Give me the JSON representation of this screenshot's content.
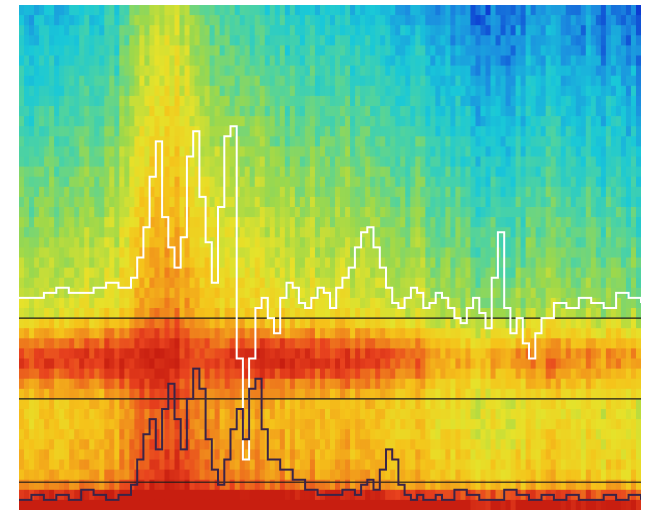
{
  "chart_data": {
    "type": "heatmap",
    "title": "",
    "xlabel": "",
    "ylabel": "",
    "grid": false,
    "legend": "none",
    "colormap": [
      "#0a2fd0",
      "#1b8fe0",
      "#19c8d8",
      "#4fd3a0",
      "#9ed84a",
      "#e6e22a",
      "#f5c31a",
      "#f08a1c",
      "#e8421e",
      "#c81e10"
    ],
    "colorscale_range": [
      0,
      1
    ],
    "grid_size": {
      "columns": 124,
      "rows": 50
    },
    "intensity_profile": {
      "x": [
        0,
        0.04,
        0.08,
        0.12,
        0.16,
        0.19,
        0.22,
        0.25,
        0.28,
        0.31,
        0.34,
        0.37,
        0.4,
        0.44,
        0.48,
        0.52,
        0.56,
        0.6,
        0.64,
        0.68,
        0.72,
        0.76,
        0.8,
        0.84,
        0.88,
        0.92,
        0.96,
        1.0
      ],
      "hot_band_strength": [
        0.85,
        0.88,
        0.86,
        0.84,
        0.82,
        0.55,
        0.5,
        0.45,
        0.35,
        0.5,
        0.7,
        0.8,
        0.86,
        0.88,
        0.86,
        0.84,
        0.82,
        0.8,
        0.7,
        0.55,
        0.5,
        0.6,
        0.72,
        0.75,
        0.74,
        0.72,
        0.7,
        0.68
      ],
      "column_warmth": [
        0.35,
        0.35,
        0.38,
        0.4,
        0.45,
        0.6,
        0.7,
        0.72,
        0.62,
        0.55,
        0.5,
        0.48,
        0.45,
        0.43,
        0.42,
        0.4,
        0.38,
        0.36,
        0.35,
        0.3,
        0.25,
        0.22,
        0.25,
        0.28,
        0.27,
        0.25,
        0.24,
        0.22
      ]
    },
    "reference_lines_y": [
      0.62,
      0.78,
      0.945
    ],
    "series": [
      {
        "color": "#ffffff",
        "x": [
          0,
          0.02,
          0.04,
          0.06,
          0.08,
          0.1,
          0.12,
          0.14,
          0.16,
          0.18,
          0.19,
          0.2,
          0.21,
          0.22,
          0.23,
          0.24,
          0.25,
          0.26,
          0.27,
          0.28,
          0.29,
          0.3,
          0.31,
          0.32,
          0.33,
          0.34,
          0.35,
          0.36,
          0.37,
          0.38,
          0.39,
          0.4,
          0.41,
          0.42,
          0.43,
          0.44,
          0.45,
          0.46,
          0.47,
          0.48,
          0.49,
          0.5,
          0.51,
          0.52,
          0.53,
          0.54,
          0.55,
          0.56,
          0.57,
          0.58,
          0.59,
          0.6,
          0.61,
          0.62,
          0.63,
          0.64,
          0.65,
          0.66,
          0.67,
          0.68,
          0.69,
          0.7,
          0.71,
          0.72,
          0.73,
          0.74,
          0.75,
          0.76,
          0.77,
          0.78,
          0.79,
          0.8,
          0.81,
          0.82,
          0.83,
          0.84,
          0.86,
          0.88,
          0.9,
          0.92,
          0.94,
          0.96,
          0.98,
          1.0
        ],
        "y": [
          0.42,
          0.42,
          0.43,
          0.44,
          0.43,
          0.43,
          0.44,
          0.45,
          0.44,
          0.46,
          0.5,
          0.56,
          0.66,
          0.73,
          0.58,
          0.52,
          0.48,
          0.54,
          0.7,
          0.75,
          0.62,
          0.53,
          0.45,
          0.6,
          0.74,
          0.76,
          0.3,
          0.1,
          0.3,
          0.4,
          0.42,
          0.38,
          0.35,
          0.42,
          0.45,
          0.44,
          0.41,
          0.4,
          0.42,
          0.44,
          0.43,
          0.4,
          0.44,
          0.46,
          0.48,
          0.52,
          0.55,
          0.56,
          0.52,
          0.48,
          0.44,
          0.41,
          0.4,
          0.42,
          0.44,
          0.43,
          0.4,
          0.41,
          0.43,
          0.42,
          0.4,
          0.38,
          0.37,
          0.4,
          0.42,
          0.39,
          0.36,
          0.46,
          0.55,
          0.4,
          0.35,
          0.38,
          0.33,
          0.3,
          0.35,
          0.38,
          0.41,
          0.4,
          0.42,
          0.41,
          0.4,
          0.43,
          0.42,
          0.41
        ]
      },
      {
        "color": "#3a2448",
        "x": [
          0,
          0.02,
          0.04,
          0.06,
          0.08,
          0.1,
          0.12,
          0.14,
          0.16,
          0.18,
          0.19,
          0.2,
          0.21,
          0.22,
          0.23,
          0.24,
          0.25,
          0.26,
          0.27,
          0.28,
          0.29,
          0.3,
          0.31,
          0.32,
          0.33,
          0.34,
          0.35,
          0.36,
          0.37,
          0.38,
          0.39,
          0.4,
          0.42,
          0.44,
          0.46,
          0.48,
          0.5,
          0.52,
          0.54,
          0.55,
          0.56,
          0.57,
          0.58,
          0.59,
          0.6,
          0.61,
          0.62,
          0.63,
          0.64,
          0.65,
          0.66,
          0.67,
          0.68,
          0.7,
          0.72,
          0.74,
          0.76,
          0.78,
          0.8,
          0.82,
          0.84,
          0.86,
          0.88,
          0.9,
          0.92,
          0.94,
          0.96,
          0.98,
          1.0
        ],
        "y": [
          0.02,
          0.03,
          0.02,
          0.03,
          0.02,
          0.04,
          0.03,
          0.02,
          0.03,
          0.05,
          0.1,
          0.15,
          0.18,
          0.12,
          0.2,
          0.25,
          0.18,
          0.12,
          0.22,
          0.28,
          0.24,
          0.14,
          0.08,
          0.05,
          0.1,
          0.16,
          0.2,
          0.14,
          0.24,
          0.26,
          0.16,
          0.1,
          0.08,
          0.06,
          0.04,
          0.03,
          0.03,
          0.04,
          0.03,
          0.05,
          0.06,
          0.04,
          0.08,
          0.12,
          0.1,
          0.05,
          0.03,
          0.02,
          0.03,
          0.02,
          0.02,
          0.03,
          0.02,
          0.04,
          0.03,
          0.02,
          0.02,
          0.04,
          0.03,
          0.02,
          0.03,
          0.02,
          0.03,
          0.02,
          0.02,
          0.03,
          0.02,
          0.03,
          0.02
        ]
      }
    ]
  }
}
